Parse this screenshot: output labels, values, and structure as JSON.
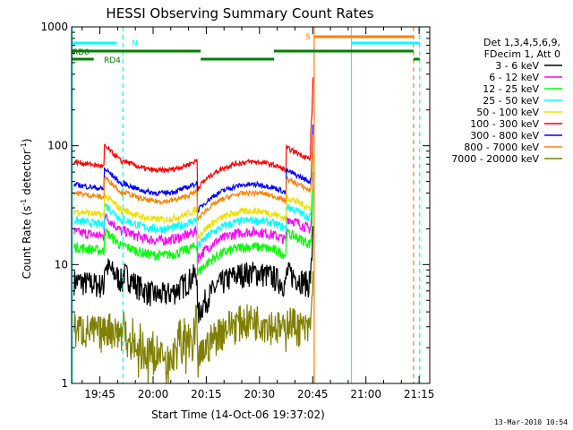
{
  "chart_data": {
    "type": "line",
    "title": "HESSI Observing Summary Count Rates",
    "xlabel": "Start Time (14-Oct-06 19:37:02)",
    "ylabel_main": "Count Rate (s",
    "ylabel_sup1": "-1",
    "ylabel_mid": " detector",
    "ylabel_sup2": "-1",
    "ylabel_end": ")",
    "y_scale": "log",
    "ylim": [
      1,
      1000
    ],
    "xlim": [
      "19:37:02",
      "21:18:00"
    ],
    "x_ticks": [
      "19:45",
      "20:00",
      "20:15",
      "20:30",
      "20:45",
      "21:00",
      "21:15"
    ],
    "y_ticks": [
      "1",
      "10",
      "100",
      "1000"
    ],
    "legend_header": [
      "Det 1,3,4,5,6,9,",
      "FDecim 1, Att 0"
    ],
    "legend_placement": "right",
    "series": [
      {
        "name": "3 - 6 keV",
        "color": "#000000"
      },
      {
        "name": "6 - 12 keV",
        "color": "#ff00ff"
      },
      {
        "name": "12 - 25 keV",
        "color": "#00ff00"
      },
      {
        "name": "25 - 50 keV",
        "color": "#00ffff"
      },
      {
        "name": "50 - 100 keV",
        "color": "#f0e000"
      },
      {
        "name": "100 - 300 keV",
        "color": "#ff0000"
      },
      {
        "name": "300 - 800 keV",
        "color": "#0000ff"
      },
      {
        "name": "800 - 7000 keV",
        "color": "#ff8000"
      },
      {
        "name": "7000 - 20000 keV",
        "color": "#808000"
      }
    ],
    "flags": [
      {
        "label": "N",
        "color": "#00ffff"
      },
      {
        "label": "S",
        "color": "#ff8000"
      },
      {
        "label": "RD0",
        "color": "#008000"
      },
      {
        "label": "RD4",
        "color": "#008000"
      }
    ],
    "timestamp": "13-Mar-2010 10:54"
  }
}
